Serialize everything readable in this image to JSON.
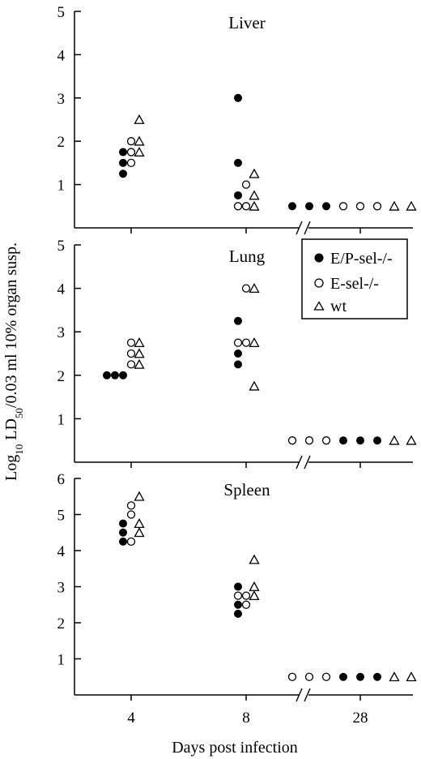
{
  "chart_data": {
    "type": "scatter",
    "xlabel": "Days post infection",
    "ylabel": "Log10 LD50/0.03 ml 10% organ susp.",
    "ylabel_parts": {
      "prefix": "Log",
      "sub1": "10",
      "mid": " LD",
      "sub2": "50",
      "suffix": "/0.03 ml 10% organ susp."
    },
    "x_categories": [
      "4",
      "8",
      "28"
    ],
    "axis_break_symbol": "//",
    "legend": {
      "placement": "top-right of Lung panel",
      "entries": [
        {
          "series": "EP",
          "label": "E/P-sel-/-"
        },
        {
          "series": "E",
          "label": "E-sel-/-"
        },
        {
          "series": "wt",
          "label": "wt"
        }
      ]
    },
    "series_markers": {
      "EP": "filled-circle",
      "E": "open-circle",
      "wt": "open-triangle"
    },
    "panels": [
      {
        "title": "Liver",
        "ylim": [
          0,
          5
        ],
        "yticks": [
          "1",
          "2",
          "3",
          "4",
          "5"
        ],
        "groups": [
          {
            "day": "4",
            "points": [
              {
                "s": "EP",
                "y": 1.75
              },
              {
                "s": "EP",
                "y": 1.5
              },
              {
                "s": "EP",
                "y": 1.25
              },
              {
                "s": "E",
                "y": 2.0
              },
              {
                "s": "E",
                "y": 1.75
              },
              {
                "s": "E",
                "y": 1.5
              },
              {
                "s": "wt",
                "y": 2.5
              },
              {
                "s": "wt",
                "y": 2.0
              },
              {
                "s": "wt",
                "y": 1.75
              }
            ]
          },
          {
            "day": "8",
            "points": [
              {
                "s": "EP",
                "y": 3.0
              },
              {
                "s": "EP",
                "y": 1.5
              },
              {
                "s": "EP",
                "y": 0.75
              },
              {
                "s": "E",
                "y": 1.0
              },
              {
                "s": "E",
                "y": 0.5
              },
              {
                "s": "E",
                "y": 0.5
              },
              {
                "s": "wt",
                "y": 1.25
              },
              {
                "s": "wt",
                "y": 0.75
              },
              {
                "s": "wt",
                "y": 0.5
              }
            ]
          },
          {
            "day": "28",
            "points": [
              {
                "s": "EP",
                "y": 0.5
              },
              {
                "s": "EP",
                "y": 0.5
              },
              {
                "s": "EP",
                "y": 0.5
              },
              {
                "s": "E",
                "y": 0.5
              },
              {
                "s": "E",
                "y": 0.5
              },
              {
                "s": "E",
                "y": 0.5
              },
              {
                "s": "wt",
                "y": 0.5
              },
              {
                "s": "wt",
                "y": 0.5
              },
              {
                "s": "wt",
                "y": 0.5
              }
            ]
          }
        ]
      },
      {
        "title": "Lung",
        "ylim": [
          0,
          5
        ],
        "yticks": [
          "1",
          "2",
          "3",
          "4",
          "5"
        ],
        "groups": [
          {
            "day": "4",
            "points": [
              {
                "s": "EP",
                "y": 2.0
              },
              {
                "s": "EP",
                "y": 2.0
              },
              {
                "s": "EP",
                "y": 2.0
              },
              {
                "s": "E",
                "y": 2.75
              },
              {
                "s": "E",
                "y": 2.5
              },
              {
                "s": "E",
                "y": 2.25
              },
              {
                "s": "wt",
                "y": 2.75
              },
              {
                "s": "wt",
                "y": 2.5
              },
              {
                "s": "wt",
                "y": 2.25
              }
            ]
          },
          {
            "day": "8",
            "points": [
              {
                "s": "EP",
                "y": 3.25
              },
              {
                "s": "EP",
                "y": 2.5
              },
              {
                "s": "EP",
                "y": 2.25
              },
              {
                "s": "E",
                "y": 4.0
              },
              {
                "s": "E",
                "y": 2.75
              },
              {
                "s": "E",
                "y": 2.75
              },
              {
                "s": "wt",
                "y": 4.0
              },
              {
                "s": "wt",
                "y": 2.75
              },
              {
                "s": "wt",
                "y": 1.75
              }
            ]
          },
          {
            "day": "28",
            "points": [
              {
                "s": "E",
                "y": 0.5
              },
              {
                "s": "E",
                "y": 0.5
              },
              {
                "s": "E",
                "y": 0.5
              },
              {
                "s": "EP",
                "y": 0.5
              },
              {
                "s": "EP",
                "y": 0.5
              },
              {
                "s": "EP",
                "y": 0.5
              },
              {
                "s": "wt",
                "y": 0.5
              },
              {
                "s": "wt",
                "y": 0.5
              },
              {
                "s": "wt",
                "y": 0.5
              }
            ]
          }
        ]
      },
      {
        "title": "Spleen",
        "ylim": [
          0,
          6
        ],
        "yticks": [
          "1",
          "2",
          "3",
          "4",
          "5",
          "6"
        ],
        "groups": [
          {
            "day": "4",
            "points": [
              {
                "s": "EP",
                "y": 4.75
              },
              {
                "s": "EP",
                "y": 4.5
              },
              {
                "s": "EP",
                "y": 4.25
              },
              {
                "s": "E",
                "y": 5.25
              },
              {
                "s": "E",
                "y": 5.0
              },
              {
                "s": "E",
                "y": 4.25
              },
              {
                "s": "wt",
                "y": 5.5
              },
              {
                "s": "wt",
                "y": 4.75
              },
              {
                "s": "wt",
                "y": 4.5
              }
            ]
          },
          {
            "day": "8",
            "points": [
              {
                "s": "EP",
                "y": 3.0
              },
              {
                "s": "EP",
                "y": 2.5
              },
              {
                "s": "EP",
                "y": 2.25
              },
              {
                "s": "E",
                "y": 2.75
              },
              {
                "s": "E",
                "y": 2.5
              },
              {
                "s": "E",
                "y": 2.75
              },
              {
                "s": "wt",
                "y": 3.75
              },
              {
                "s": "wt",
                "y": 3.0
              },
              {
                "s": "wt",
                "y": 2.75
              }
            ]
          },
          {
            "day": "28",
            "points": [
              {
                "s": "E",
                "y": 0.5
              },
              {
                "s": "E",
                "y": 0.5
              },
              {
                "s": "E",
                "y": 0.5
              },
              {
                "s": "EP",
                "y": 0.5
              },
              {
                "s": "EP",
                "y": 0.5
              },
              {
                "s": "EP",
                "y": 0.5
              },
              {
                "s": "wt",
                "y": 0.5
              },
              {
                "s": "wt",
                "y": 0.5
              },
              {
                "s": "wt",
                "y": 0.5
              }
            ]
          }
        ]
      }
    ]
  }
}
